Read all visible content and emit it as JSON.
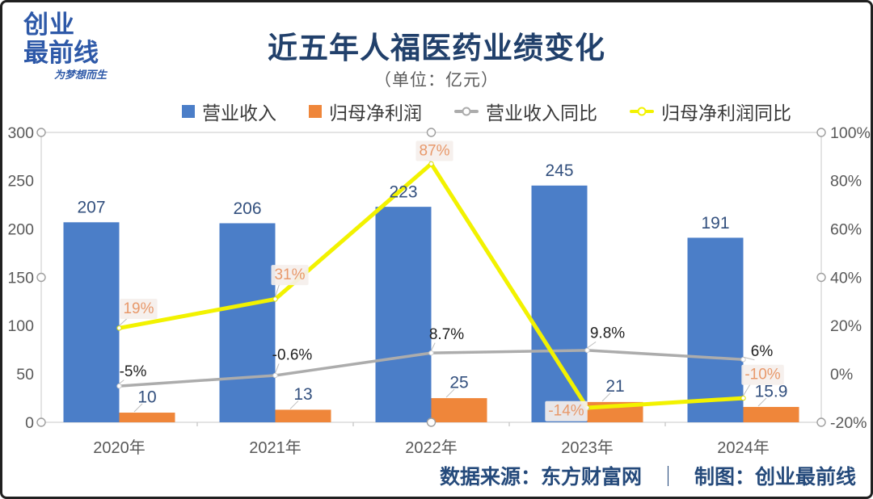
{
  "logo": {
    "line1": "创业",
    "line2": "最前线",
    "script": "为梦想而生"
  },
  "header": {
    "title": "近五年人福医药业绩变化",
    "subtitle": "（单位：亿元）"
  },
  "legend": [
    {
      "label": "营业收入",
      "type": "square",
      "color": "#4B7EC8"
    },
    {
      "label": "归母净利润",
      "type": "square",
      "color": "#EF863A"
    },
    {
      "label": "营业收入同比",
      "type": "line",
      "color": "#ACACAC"
    },
    {
      "label": "归母净利润同比",
      "type": "line",
      "color": "#F2F200"
    }
  ],
  "chart_data": {
    "type": "combo-bar-line",
    "categories": [
      "2020年",
      "2021年",
      "2022年",
      "2023年",
      "2024年"
    ],
    "series": [
      {
        "name": "营业收入",
        "type": "bar",
        "axis": "left",
        "color": "#4B7EC8",
        "values": [
          207,
          206,
          223,
          245,
          191
        ],
        "labels": [
          "207",
          "206",
          "223",
          "245",
          "191"
        ],
        "label_color": "#33507E"
      },
      {
        "name": "归母净利润",
        "type": "bar",
        "axis": "left",
        "color": "#EF863A",
        "values": [
          10,
          13,
          25,
          21,
          15.9
        ],
        "labels": [
          "10",
          "13",
          "25",
          "21",
          "15.9"
        ],
        "label_color": "#33507E"
      },
      {
        "name": "营业收入同比",
        "type": "line",
        "axis": "right",
        "color": "#ACACAC",
        "values": [
          -5,
          -0.6,
          8.7,
          9.8,
          6
        ],
        "labels": [
          "-5%",
          "-0.6%",
          "8.7%",
          "9.8%",
          "6%"
        ],
        "label_color": "#1F1F1F",
        "label_bg": null
      },
      {
        "name": "归母净利润同比",
        "type": "line",
        "axis": "right",
        "color": "#F2F200",
        "values": [
          19,
          31,
          87,
          -14,
          -10
        ],
        "labels": [
          "19%",
          "31%",
          "87%",
          "-14%",
          "-10%"
        ],
        "label_color": "#E8996B",
        "label_bg": "#F5EFEC"
      }
    ],
    "left_axis": {
      "min": 0,
      "max": 300,
      "step": 50,
      "ticks": [
        "0",
        "50",
        "100",
        "150",
        "200",
        "250",
        "300"
      ]
    },
    "right_axis": {
      "min": -20,
      "max": 100,
      "step": 20,
      "ticks": [
        "-20%",
        "0%",
        "20%",
        "40%",
        "60%",
        "80%",
        "100%"
      ]
    },
    "legend_position": "top",
    "grid": false
  },
  "colors": {
    "title_navy": "#21406B",
    "footer_navy": "#254A7B",
    "logo_blue": "#2E59A8",
    "tick_gray": "#595959",
    "plot_border": "#D8D8D8",
    "handle_stroke": "#9E9E9E",
    "leader_gray": "#BDBDBD"
  },
  "footer": {
    "source": "数据来源：东方财富网",
    "separator": "｜",
    "credit": "制图：创业最前线"
  }
}
